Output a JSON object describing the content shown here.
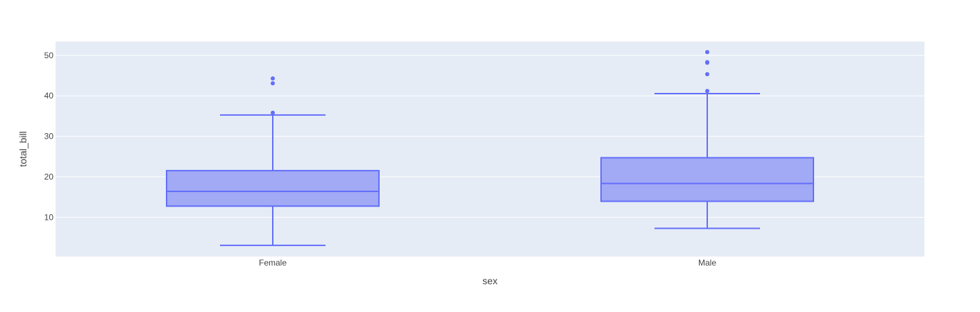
{
  "chart_data": {
    "type": "box",
    "xlabel": "sex",
    "ylabel": "total_bill",
    "categories": [
      "Female",
      "Male"
    ],
    "y_ticks": [
      10,
      20,
      30,
      40,
      50
    ],
    "ylim": [
      0.3,
      53.4
    ],
    "grid": true,
    "legend": "none",
    "boxes": [
      {
        "category": "Female",
        "lower_whisker": 3.07,
        "q1": 12.75,
        "median": 16.4,
        "q3": 21.52,
        "upper_whisker": 35.26,
        "outliers": [
          35.83,
          43.11,
          44.3
        ]
      },
      {
        "category": "Male",
        "lower_whisker": 7.25,
        "q1": 13.94,
        "median": 18.35,
        "q3": 24.71,
        "upper_whisker": 40.55,
        "outliers": [
          41.19,
          45.35,
          48.17,
          48.33,
          50.81
        ]
      }
    ],
    "colors": {
      "plot_bg": "#E5ECF6",
      "grid": "#FFFFFF",
      "box_line": "#636EFA",
      "box_fill": "#A2A9F5",
      "text": "#444444"
    }
  }
}
